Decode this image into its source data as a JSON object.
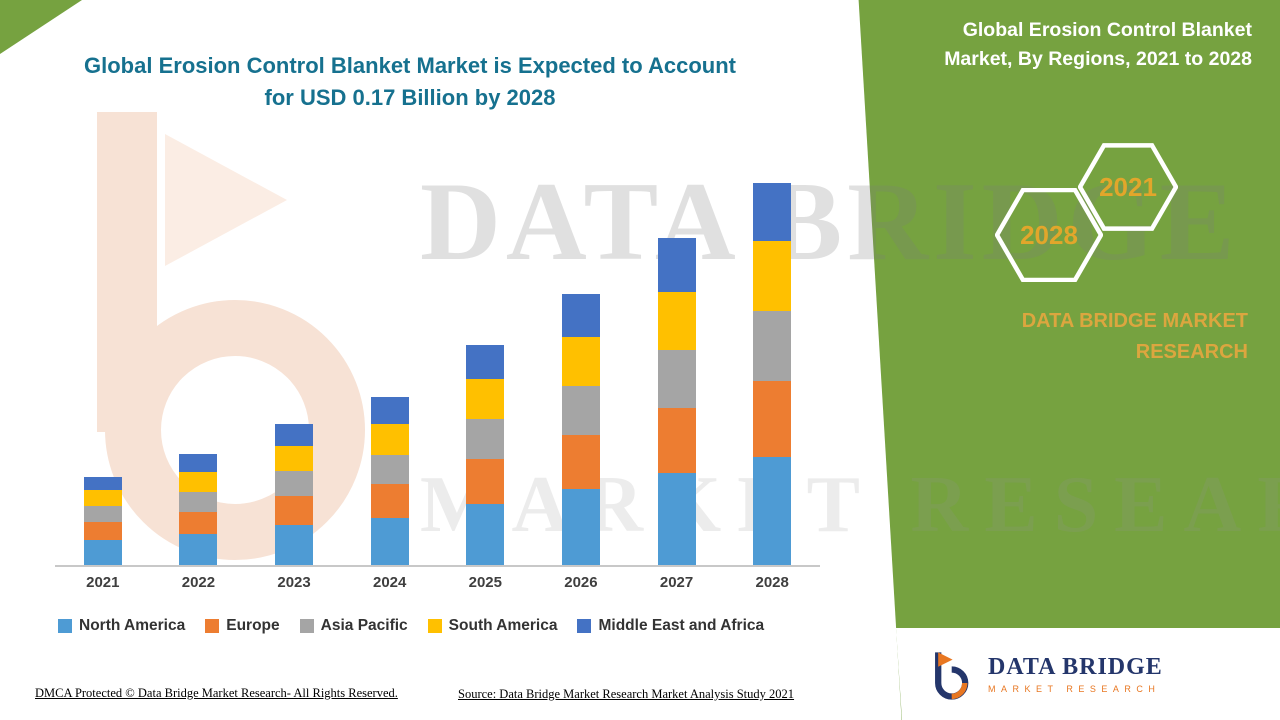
{
  "headline": {
    "line1": "Global Erosion Control Blanket Market is Expected to Account",
    "line2": "for USD 0.17 Billion by 2028",
    "color": "#16718F"
  },
  "panel": {
    "title": "Global Erosion Control Blanket Market, By Regions, 2021 to 2028",
    "hexagon_left_label": "2028",
    "hexagon_right_label": "2021",
    "brand": "DATA BRIDGE MARKET RESEARCH",
    "background_color": "#76A240",
    "accent_text_color": "#DCA63F"
  },
  "watermark": {
    "line1": "DATA BRIDGE",
    "line2": "MARKET RESEARCH"
  },
  "chart_data": {
    "type": "bar",
    "stacked": true,
    "unit": "USD Billion",
    "title": "Global Erosion Control Blanket Market, By Regions, 2021 to 2028",
    "xlabel": "",
    "ylabel": "",
    "ylim": [
      0,
      0.18
    ],
    "y_axis_visible": false,
    "gridlines": false,
    "legend_position": "bottom",
    "categories": [
      "2021",
      "2022",
      "2023",
      "2024",
      "2025",
      "2026",
      "2027",
      "2028"
    ],
    "series": [
      {
        "name": "North America",
        "color": "#4E9BD4",
        "values": [
          0.011,
          0.014,
          0.018,
          0.021,
          0.027,
          0.034,
          0.041,
          0.048
        ]
      },
      {
        "name": "Europe",
        "color": "#ED7D31",
        "values": [
          0.008,
          0.01,
          0.013,
          0.015,
          0.02,
          0.024,
          0.029,
          0.034
        ]
      },
      {
        "name": "Asia Pacific",
        "color": "#A5A5A5",
        "values": [
          0.007,
          0.009,
          0.011,
          0.013,
          0.018,
          0.022,
          0.026,
          0.031
        ]
      },
      {
        "name": "South America",
        "color": "#FFC000",
        "values": [
          0.007,
          0.009,
          0.011,
          0.014,
          0.018,
          0.022,
          0.026,
          0.031
        ]
      },
      {
        "name": "Middle East and Africa",
        "color": "#4472C4",
        "values": [
          0.006,
          0.008,
          0.01,
          0.012,
          0.015,
          0.019,
          0.024,
          0.026
        ]
      }
    ],
    "totals": [
      0.039,
      0.05,
      0.063,
      0.075,
      0.098,
      0.121,
      0.146,
      0.17
    ]
  },
  "footer": {
    "dmca": "DMCA Protected © Data Bridge Market Research- All Rights Reserved.",
    "source": "Source: Data Bridge Market Research Market Analysis Study 2021"
  },
  "logo": {
    "name": "DATA BRIDGE",
    "sub": "MARKET RESEARCH"
  }
}
